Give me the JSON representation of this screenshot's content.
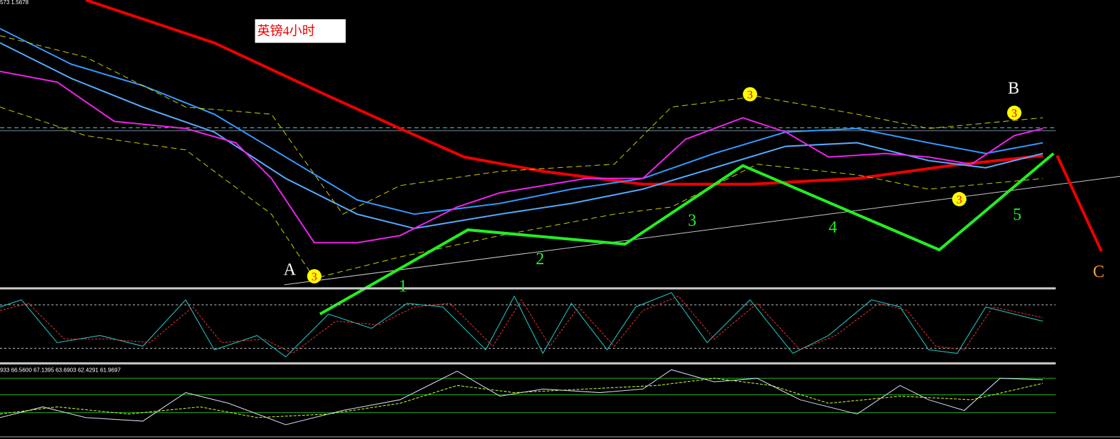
{
  "header": {
    "info": "573 1.5678"
  },
  "title": "英镑4小时",
  "wave_labels": [
    "A",
    "1",
    "2",
    "3",
    "4",
    "5",
    "B",
    "C"
  ],
  "markers": [
    "3",
    "3",
    "3",
    "3"
  ],
  "indicator_values": "933 66.5600 67.1395 63.6903 62.4291 61.9697"
}
